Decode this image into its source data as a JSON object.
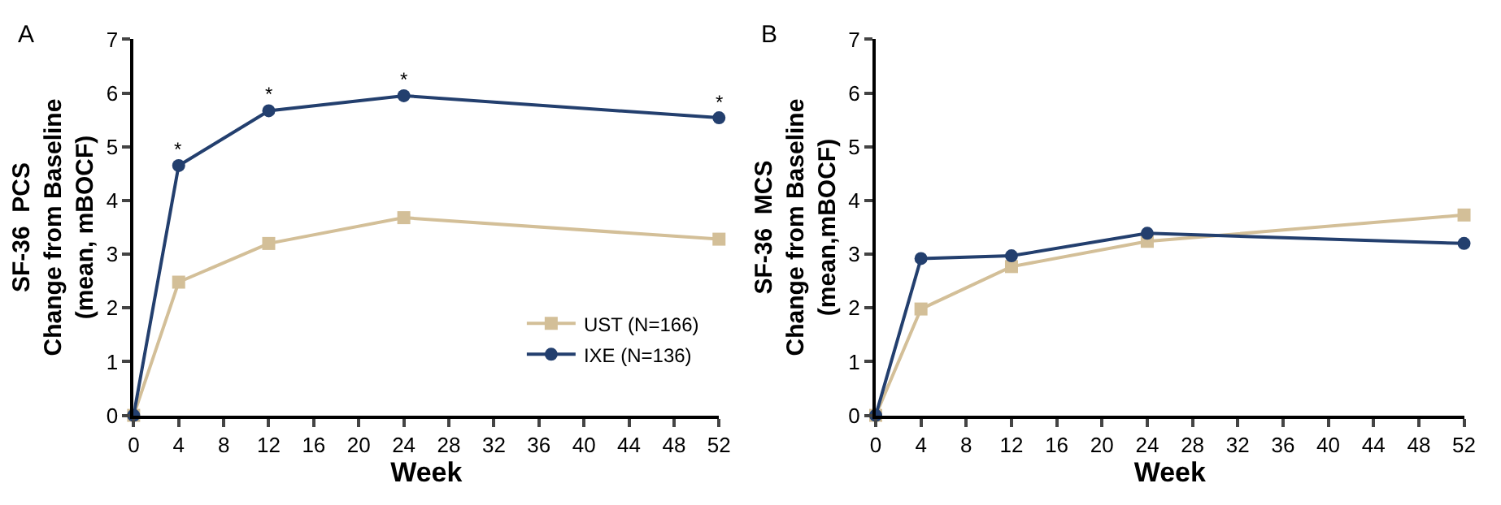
{
  "chart_data": [
    {
      "type": "line",
      "title": "A",
      "xlabel": "Week",
      "ylabel": "SF-36  PCS\nChange from Baseline\n(mean, mBOCF)",
      "xlim": [
        0,
        52
      ],
      "xticks": [
        0,
        4,
        8,
        12,
        16,
        20,
        24,
        28,
        32,
        36,
        40,
        44,
        48,
        52
      ],
      "ylim": [
        0,
        7
      ],
      "yticks": [
        0,
        1,
        2,
        3,
        4,
        5,
        6,
        7
      ],
      "x": [
        0,
        4,
        12,
        24,
        52
      ],
      "series": [
        {
          "name": "UST (N=166)",
          "color": "#d3bf98",
          "marker": "square",
          "values": [
            0,
            2.48,
            3.2,
            3.68,
            3.28
          ]
        },
        {
          "name": "IXE (N=136)",
          "color": "#233f6e",
          "marker": "circle",
          "values": [
            0,
            4.65,
            5.67,
            5.95,
            5.54
          ]
        }
      ],
      "annotations": [
        {
          "text": "*",
          "x": 4,
          "y": 4.65
        },
        {
          "text": "*",
          "x": 12,
          "y": 5.67
        },
        {
          "text": "*",
          "x": 24,
          "y": 5.95
        },
        {
          "text": "*",
          "x": 52,
          "y": 5.54
        }
      ],
      "legend": "bottom right"
    },
    {
      "type": "line",
      "title": "B",
      "xlabel": "Week",
      "ylabel": "SF-36  MCS\nChange from Baseline\n(mean,mBOCF)",
      "xlim": [
        0,
        52
      ],
      "xticks": [
        0,
        4,
        8,
        12,
        16,
        20,
        24,
        28,
        32,
        36,
        40,
        44,
        48,
        52
      ],
      "ylim": [
        0,
        7
      ],
      "yticks": [
        0,
        1,
        2,
        3,
        4,
        5,
        6,
        7
      ],
      "x": [
        0,
        4,
        12,
        24,
        52
      ],
      "series": [
        {
          "color": "#d3bf98",
          "marker": "square",
          "values": [
            0,
            1.98,
            2.77,
            3.24,
            3.73
          ]
        },
        {
          "color": "#233f6e",
          "marker": "circle",
          "values": [
            0,
            2.92,
            2.97,
            3.39,
            3.2
          ]
        }
      ],
      "legend": false
    }
  ]
}
